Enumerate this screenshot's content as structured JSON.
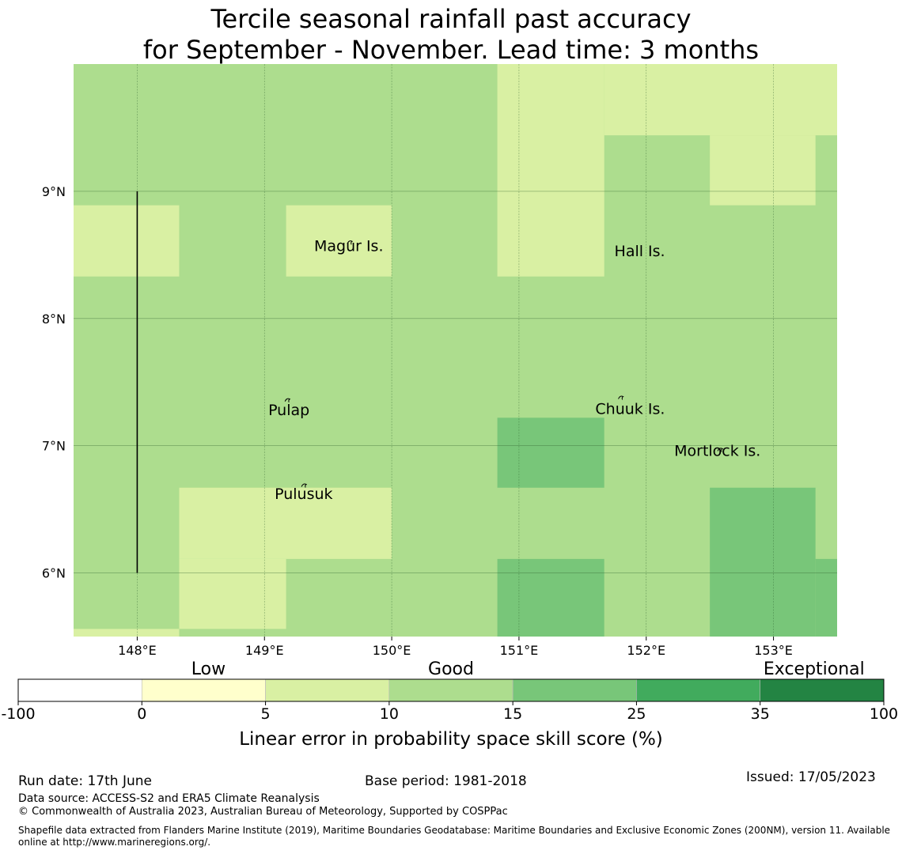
{
  "title_line1": "Tercile seasonal rainfall past accuracy",
  "title_line2": "for September - November. Lead time: 3 months",
  "map": {
    "lon_range": [
      147.5,
      153.5
    ],
    "lat_range": [
      5.5,
      10.0
    ],
    "lon_ticks": [
      148,
      149,
      150,
      151,
      152,
      153
    ],
    "lon_tick_labels": [
      "148°E",
      "149°E",
      "150°E",
      "151°E",
      "152°E",
      "153°E"
    ],
    "lat_ticks": [
      6,
      7,
      8,
      9
    ],
    "lat_tick_labels": [
      "6°N",
      "7°N",
      "8°N",
      "9°N"
    ],
    "grid": true,
    "boundary_line": {
      "lon": 148.0,
      "lat_from": 6.0,
      "lat_to": 9.0
    },
    "base_category": 3,
    "cells": [
      {
        "lon0": 147.5,
        "lon1": 148.33,
        "lat0": 8.33,
        "lat1": 8.89,
        "cat": 2
      },
      {
        "lon0": 149.17,
        "lon1": 150.0,
        "lat0": 8.33,
        "lat1": 8.89,
        "cat": 2
      },
      {
        "lon0": 150.83,
        "lon1": 151.67,
        "lat0": 8.33,
        "lat1": 10.0,
        "cat": 2
      },
      {
        "lon0": 151.67,
        "lon1": 153.5,
        "lat0": 9.44,
        "lat1": 10.0,
        "cat": 2
      },
      {
        "lon0": 152.5,
        "lon1": 153.33,
        "lat0": 8.89,
        "lat1": 9.44,
        "cat": 2
      },
      {
        "lon0": 148.33,
        "lon1": 150.0,
        "lat0": 6.11,
        "lat1": 6.67,
        "cat": 2
      },
      {
        "lon0": 148.33,
        "lon1": 149.17,
        "lat0": 5.56,
        "lat1": 6.11,
        "cat": 2
      },
      {
        "lon0": 147.5,
        "lon1": 148.33,
        "lat0": 5.5,
        "lat1": 5.56,
        "cat": 2
      },
      {
        "lon0": 150.83,
        "lon1": 151.67,
        "lat0": 6.67,
        "lat1": 7.22,
        "cat": 4
      },
      {
        "lon0": 150.83,
        "lon1": 151.67,
        "lat0": 5.5,
        "lat1": 6.11,
        "cat": 4
      },
      {
        "lon0": 152.5,
        "lon1": 153.33,
        "lat0": 5.5,
        "lat1": 6.67,
        "cat": 4
      },
      {
        "lon0": 153.33,
        "lon1": 153.5,
        "lat0": 5.5,
        "lat1": 6.11,
        "cat": 4
      }
    ],
    "places": [
      {
        "name": "Magur Is.",
        "lon": 149.39,
        "lat": 8.53,
        "marker_lon": 149.67,
        "marker_lat": 8.6
      },
      {
        "name": "Hall Is.",
        "lon": 151.75,
        "lat": 8.49,
        "marker_lon": null,
        "marker_lat": null
      },
      {
        "name": "Pulap",
        "lon": 149.03,
        "lat": 7.24,
        "marker_lon": 149.18,
        "marker_lat": 7.36
      },
      {
        "name": "Chuuk Is.",
        "lon": 151.6,
        "lat": 7.25,
        "marker_lon": 151.8,
        "marker_lat": 7.38
      },
      {
        "name": "Mortlock Is.",
        "lon": 152.22,
        "lat": 6.92,
        "marker_lon": 152.58,
        "marker_lat": 6.97
      },
      {
        "name": "Pulusuk",
        "lon": 149.08,
        "lat": 6.58,
        "marker_lon": 149.31,
        "marker_lat": 6.69
      }
    ]
  },
  "legend": {
    "category_labels": [
      "Low",
      "Good",
      "Exceptional"
    ],
    "boundaries": [
      "-100",
      "0",
      "5",
      "10",
      "15",
      "25",
      "35",
      "100"
    ],
    "colors": [
      "#ffffff",
      "#ffffcc",
      "#d9f0a3",
      "#addd8e",
      "#78c679",
      "#41ab5d",
      "#238443"
    ],
    "xlabel": "Linear error in probability space skill score (%)"
  },
  "footer": {
    "run_date": "Run date: 17th June",
    "base_period": "Base period: 1981-2018",
    "issued": "Issued: 17/05/2023",
    "data_source": "Data source: ACCESS-S2 and ERA5 Climate Reanalysis",
    "copyright": "© Commonwealth of Australia 2023, Australian Bureau of Meteorology, Supported by COSPPac",
    "shapefile": "Shapefile data extracted from Flanders Marine Institute (2019), Maritime Boundaries Geodatabase: Maritime Boundaries and Exclusive Economic Zones (200NM), version 11. Available online at http://www.marineregions.org/."
  }
}
